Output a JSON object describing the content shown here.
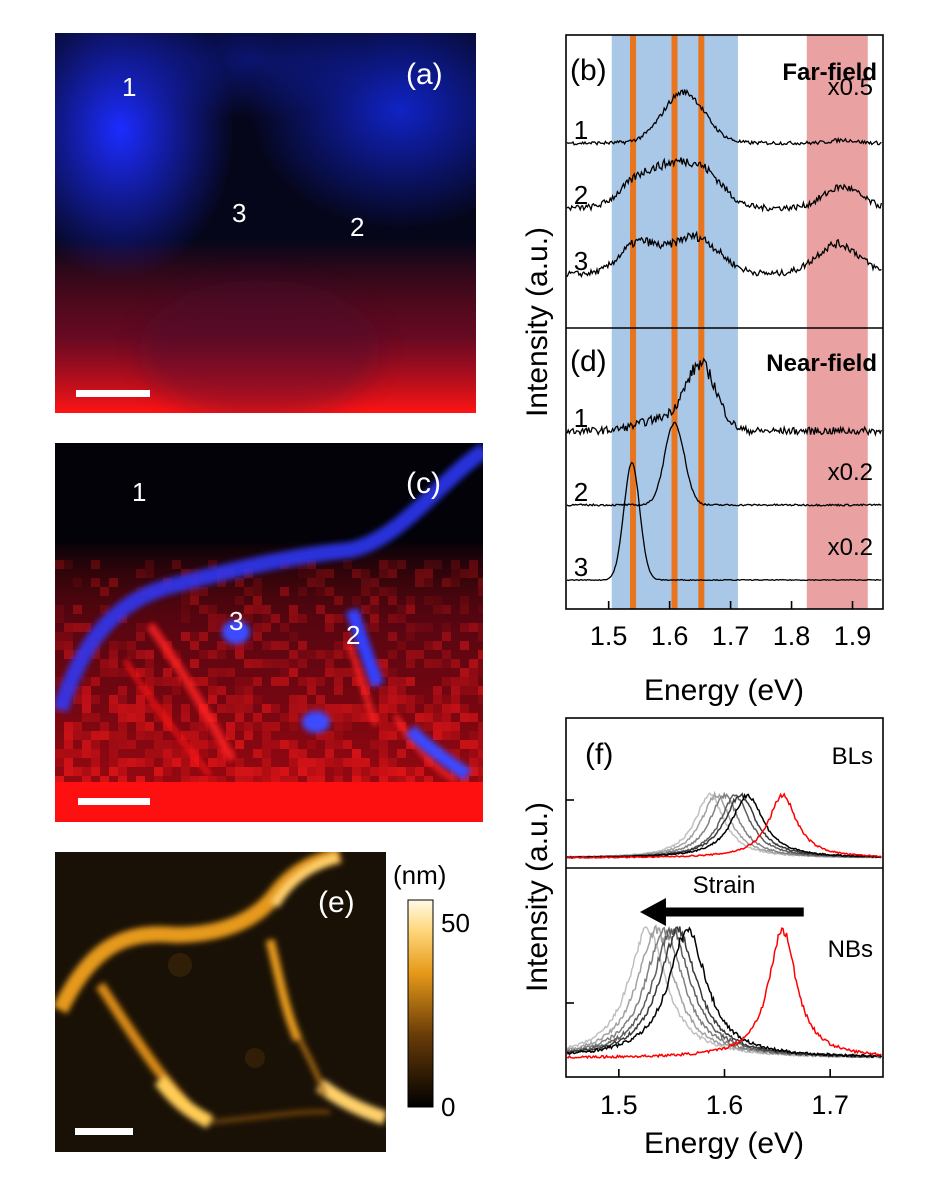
{
  "panels": {
    "a": {
      "label": "(a)",
      "markers": [
        "1",
        "2",
        "3"
      ],
      "colors": {
        "background": "#05061a",
        "far_blue": "#1c2cff",
        "substrate_red": "#ff1414"
      }
    },
    "c": {
      "label": "(c)",
      "markers": [
        "1",
        "2",
        "3"
      ],
      "colors": {
        "background": "#020208",
        "nanobubble_blue": "#2d3bff",
        "substrate_red": "#ff1010"
      }
    },
    "e": {
      "label": "(e)",
      "colorbar": {
        "unit": "(nm)",
        "max": "50",
        "min": "0"
      },
      "colors": {
        "low": "#000000",
        "mid": "#e69a1a",
        "high": "#fffbe8"
      }
    }
  },
  "chart_data": [
    {
      "type": "line",
      "panel": "b/d",
      "xlabel": "Energy (eV)",
      "ylabel": "Intensity (a.u.)",
      "xlim": [
        1.43,
        1.95
      ],
      "xticks": [
        "1.5",
        "1.6",
        "1.7",
        "1.8",
        "1.9"
      ],
      "shaded_regions": [
        {
          "from": 1.505,
          "to": 1.712,
          "color": "#a9c8e8"
        },
        {
          "from": 1.825,
          "to": 1.925,
          "color": "#e9a1a1"
        }
      ],
      "vertical_lines": {
        "x": [
          1.54,
          1.608,
          1.652
        ],
        "color": "#e8741e"
      },
      "subpanels": [
        {
          "label": "(b)",
          "title": "Far-field",
          "series": [
            {
              "name": "1",
              "scale": "x0.5",
              "peaks": [
                {
                  "center": 1.623,
                  "amp": 0.34,
                  "width": 0.034
                },
                {
                  "center": 1.885,
                  "amp": 0.02,
                  "width": 0.02
                }
              ],
              "noise": 0.012
            },
            {
              "name": "2",
              "scale": "",
              "peaks": [
                {
                  "center": 1.545,
                  "amp": 0.14,
                  "width": 0.03
                },
                {
                  "center": 1.61,
                  "amp": 0.27,
                  "width": 0.04
                },
                {
                  "center": 1.665,
                  "amp": 0.14,
                  "width": 0.03
                },
                {
                  "center": 1.883,
                  "amp": 0.14,
                  "width": 0.03
                }
              ],
              "noise": 0.02
            },
            {
              "name": "3",
              "scale": "",
              "peaks": [
                {
                  "center": 1.548,
                  "amp": 0.2,
                  "width": 0.03
                },
                {
                  "center": 1.64,
                  "amp": 0.25,
                  "width": 0.04
                },
                {
                  "center": 1.876,
                  "amp": 0.2,
                  "width": 0.035
                }
              ],
              "noise": 0.02
            }
          ]
        },
        {
          "label": "(d)",
          "title": "Near-field",
          "series": [
            {
              "name": "1",
              "scale": "",
              "peaks": [
                {
                  "center": 1.652,
                  "amp": 0.42,
                  "width": 0.025
                },
                {
                  "center": 1.59,
                  "amp": 0.08,
                  "width": 0.04
                }
              ],
              "noise": 0.025
            },
            {
              "name": "2",
              "scale": "x0.2",
              "peaks": [
                {
                  "center": 1.608,
                  "amp": 0.55,
                  "width": 0.016
                }
              ],
              "noise": 0.006
            },
            {
              "name": "3",
              "scale": "x0.2",
              "peaks": [
                {
                  "center": 1.538,
                  "amp": 0.78,
                  "width": 0.013
                }
              ],
              "noise": 0.003
            }
          ]
        }
      ]
    },
    {
      "type": "line",
      "panel": "f",
      "label": "(f)",
      "xlabel": "Energy (eV)",
      "ylabel": "Intensity (a.u.)",
      "xlim": [
        1.45,
        1.75
      ],
      "xticks": [
        "1.5",
        "1.6",
        "1.7"
      ],
      "annotation": {
        "text": "Strain",
        "arrow_from": 1.675,
        "arrow_to": 1.52
      },
      "subpanels": [
        {
          "title": "BLs",
          "series": [
            {
              "name": "unstrained",
              "color": "#ff0000",
              "center": 1.655,
              "width": 0.016
            },
            {
              "name": "s1",
              "color": "#000000",
              "center": 1.622,
              "width": 0.018
            },
            {
              "name": "s2",
              "color": "#3a3a3a",
              "center": 1.615,
              "width": 0.018
            },
            {
              "name": "s3",
              "color": "#5e5e5e",
              "center": 1.61,
              "width": 0.017
            },
            {
              "name": "s4",
              "color": "#808080",
              "center": 1.6,
              "width": 0.017
            },
            {
              "name": "s5",
              "color": "#a2a2a2",
              "center": 1.592,
              "width": 0.017
            },
            {
              "name": "s6",
              "color": "#c0c0c0",
              "center": 1.586,
              "width": 0.017
            }
          ]
        },
        {
          "title": "NBs",
          "series": [
            {
              "name": "unstrained",
              "color": "#ff0000",
              "center": 1.655,
              "width": 0.016
            },
            {
              "name": "s1",
              "color": "#000000",
              "center": 1.565,
              "width": 0.022
            },
            {
              "name": "s2",
              "color": "#3a3a3a",
              "center": 1.556,
              "width": 0.022
            },
            {
              "name": "s3",
              "color": "#5e5e5e",
              "center": 1.55,
              "width": 0.022
            },
            {
              "name": "s4",
              "color": "#808080",
              "center": 1.543,
              "width": 0.022
            },
            {
              "name": "s5",
              "color": "#a2a2a2",
              "center": 1.535,
              "width": 0.022
            },
            {
              "name": "s6",
              "color": "#c0c0c0",
              "center": 1.527,
              "width": 0.022
            }
          ]
        }
      ]
    }
  ]
}
